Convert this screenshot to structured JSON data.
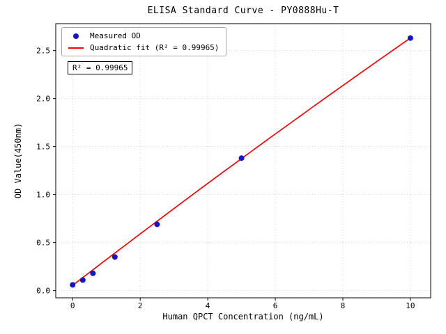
{
  "chart_data": {
    "type": "scatter",
    "title": "ELISA Standard Curve - PY0888Hu-T",
    "xlabel": "Human QPCT Concentration (ng/mL)",
    "ylabel": "OD Value(450nm)",
    "xlim": [
      -0.5,
      10.6
    ],
    "ylim": [
      -0.075,
      2.78
    ],
    "x_ticks": [
      0,
      2,
      4,
      6,
      8,
      10
    ],
    "x_tick_labels": [
      "0",
      "2",
      "4",
      "6",
      "8",
      "10"
    ],
    "y_ticks": [
      0.0,
      0.5,
      1.0,
      1.5,
      2.0,
      2.5
    ],
    "y_tick_labels": [
      "0.0",
      "0.5",
      "1.0",
      "1.5",
      "2.0",
      "2.5"
    ],
    "grid": true,
    "legend_position": "upper left",
    "legend": [
      "Measured OD",
      "Quadratic fit (R² = 0.99965)"
    ],
    "annotation": "R² = 0.99965",
    "series": [
      {
        "name": "Measured OD",
        "type": "scatter",
        "color": "#1414cd",
        "x": [
          0,
          0.3,
          0.6,
          1.25,
          2.5,
          5,
          10
        ],
        "y": [
          0.06,
          0.11,
          0.18,
          0.35,
          0.69,
          1.38,
          2.63
        ]
      },
      {
        "name": "Quadratic fit",
        "type": "line",
        "color": "#ff0000",
        "fit_coeffs": {
          "a": -0.0013,
          "b": 0.2705,
          "c": 0.055
        },
        "x_range": [
          0,
          10
        ],
        "r_squared": "0.99965"
      }
    ],
    "colors": {
      "point": "#1414cd",
      "line": "#ff0000",
      "grid": "#c9c9c9",
      "spine": "#000000"
    }
  }
}
